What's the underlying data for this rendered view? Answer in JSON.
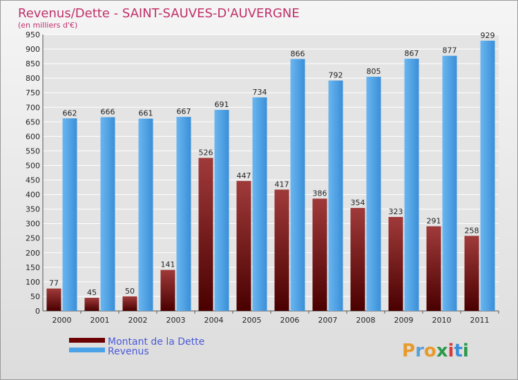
{
  "chart_data": {
    "type": "bar",
    "title": "Revenus/Dette - SAINT-SAUVES-D'AUVERGNE",
    "subtitle": "(en milliers d'€)",
    "categories": [
      "2000",
      "2001",
      "2002",
      "2003",
      "2004",
      "2005",
      "2006",
      "2007",
      "2008",
      "2009",
      "2010",
      "2011"
    ],
    "series": [
      {
        "name": "Montant de la Dette",
        "color": "#6b0000",
        "values": [
          77,
          45,
          50,
          141,
          526,
          447,
          417,
          386,
          354,
          323,
          291,
          258
        ]
      },
      {
        "name": "Revenus",
        "color": "#4aa3e8",
        "values": [
          662,
          666,
          661,
          667,
          691,
          734,
          866,
          792,
          805,
          867,
          877,
          929
        ]
      }
    ],
    "ylim": [
      0,
      950
    ],
    "ytick_step": 50,
    "grid": true,
    "legend_position": "bottom-left"
  },
  "branding": {
    "logo_text": "Proxiti"
  },
  "colors": {
    "title": "#c0306a",
    "background": "#e9e9e9",
    "grid": "#ffffff"
  }
}
